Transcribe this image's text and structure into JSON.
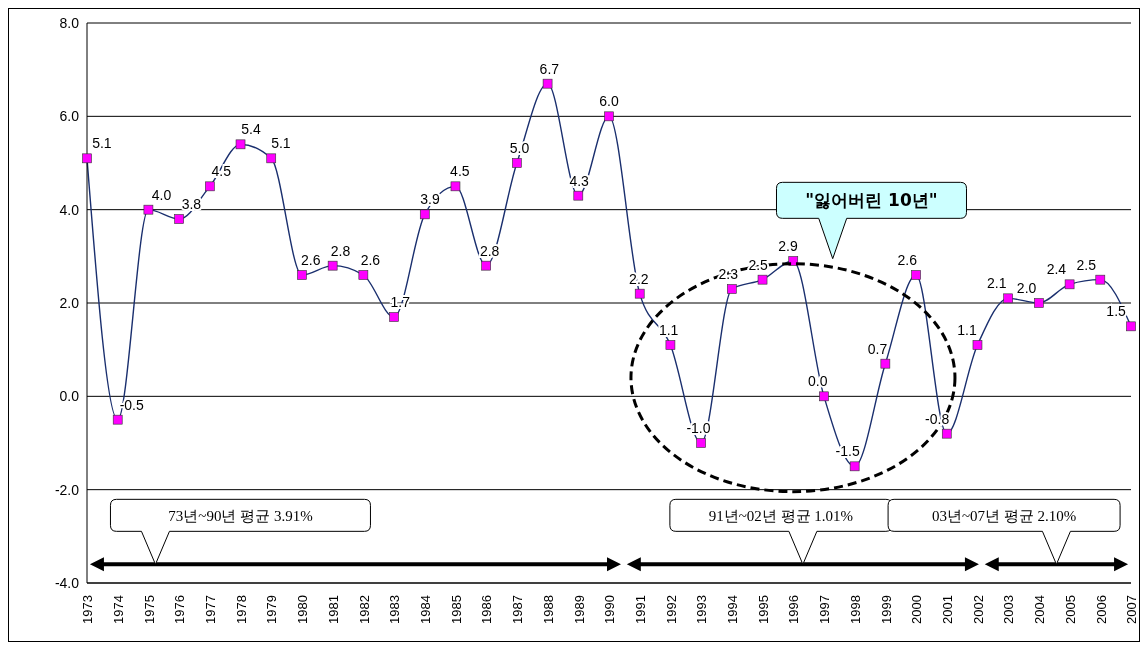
{
  "chart_data": {
    "type": "line",
    "categories": [
      "1973",
      "1974",
      "1975",
      "1976",
      "1977",
      "1978",
      "1979",
      "1980",
      "1981",
      "1982",
      "1983",
      "1984",
      "1985",
      "1986",
      "1987",
      "1988",
      "1989",
      "1990",
      "1991",
      "1992",
      "1993",
      "1994",
      "1995",
      "1996",
      "1997",
      "1998",
      "1999",
      "2000",
      "2001",
      "2002",
      "2003",
      "2004",
      "2005",
      "2006",
      "2007"
    ],
    "series": [
      {
        "color": "#1a2f6e",
        "colors": [
          "#ff00ff",
          "#ff00ff",
          "#ff00ff",
          "#ff00ff",
          "#ff00ff",
          "#ff00ff",
          "#ff00ff",
          "#ff00ff",
          "#ff00ff",
          "#ff00ff",
          "#ff00ff",
          "#ff00ff",
          "#ff00ff",
          "#ff00ff",
          "#ff00ff",
          "#ff00ff",
          "#ff00ff",
          "#ff00ff",
          "#ff00ff",
          "#ff00ff",
          "#ff00ff",
          "#ff00ff",
          "#ff00ff",
          "#ff00ff",
          "#ff00ff",
          "#ff00ff",
          "#ff00ff",
          "#ff00ff",
          "#ff00ff",
          "#ff00ff",
          "#ff00ff",
          "#ff00ff",
          "#ff00ff",
          "#ff00ff",
          "#ff00ff"
        ],
        "values": [
          5.1,
          -0.5,
          4.0,
          3.8,
          4.5,
          5.4,
          5.1,
          2.6,
          2.8,
          2.6,
          1.7,
          3.9,
          4.5,
          2.8,
          5.0,
          6.7,
          4.3,
          6.0,
          2.2,
          1.1,
          -1.0,
          2.3,
          2.5,
          2.9,
          0.0,
          -1.5,
          0.7,
          2.6,
          -0.8,
          1.1,
          2.1,
          2.0,
          2.4,
          2.5,
          1.5
        ],
        "value_labels": [
          "5.1",
          "-0.5",
          "4.0",
          "3.8",
          "4.5",
          "5.4",
          "5.1",
          "2.6",
          "2.8",
          "2.6",
          "1.7",
          "3.9",
          "4.5",
          "2.8",
          "5.0",
          "6.7",
          "4.3",
          "6.0",
          "2.2",
          "1.1",
          "-1.0",
          "2.3",
          "2.5",
          "2.9",
          "0.0",
          "-1.5",
          "0.7",
          "2.6",
          "-0.8",
          "1.1",
          "2.1",
          "2.0",
          "2.4",
          "2.5",
          "1.5"
        ]
      }
    ],
    "ylim": [
      -4,
      8
    ],
    "yticks": [
      {
        "value": -4,
        "label": "-4.0"
      },
      {
        "value": -2,
        "label": "-2.0"
      },
      {
        "value": 0,
        "label": "0.0"
      },
      {
        "value": 2,
        "label": "2.0"
      },
      {
        "value": 4,
        "label": "4.0"
      },
      {
        "value": 6,
        "label": "6.0"
      },
      {
        "value": 8,
        "label": "8.0"
      }
    ],
    "grid": "y",
    "legend": false,
    "marker": "square",
    "line_style": "solid",
    "annotations": [
      "\"잃어버린 10년\"",
      "73년~90년 평균 3.91%",
      "91년~02년 평균 1.01%",
      "03년~07년 평균 2.10%"
    ]
  }
}
